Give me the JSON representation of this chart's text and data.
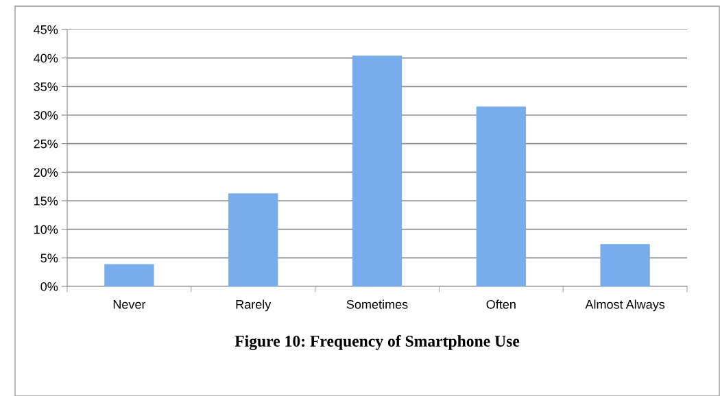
{
  "chart_data": {
    "type": "bar",
    "title": "Figure 10: Frequency of Smartphone Use",
    "categories": [
      "Never",
      "Rarely",
      "Sometimes",
      "Often",
      "Almost Always"
    ],
    "values": [
      3.9,
      16.3,
      40.4,
      31.5,
      7.4
    ],
    "color": "#78acea",
    "ylim": [
      0,
      45
    ],
    "yticks": [
      {
        "value": 0,
        "label": "0%"
      },
      {
        "value": 5,
        "label": "5%"
      },
      {
        "value": 10,
        "label": "10%"
      },
      {
        "value": 15,
        "label": "15%"
      },
      {
        "value": 20,
        "label": "20%"
      },
      {
        "value": 25,
        "label": "25%"
      },
      {
        "value": 30,
        "label": "30%"
      },
      {
        "value": 35,
        "label": "35%"
      },
      {
        "value": 40,
        "label": "40%"
      },
      {
        "value": 45,
        "label": "45%"
      }
    ],
    "grid": "y"
  }
}
